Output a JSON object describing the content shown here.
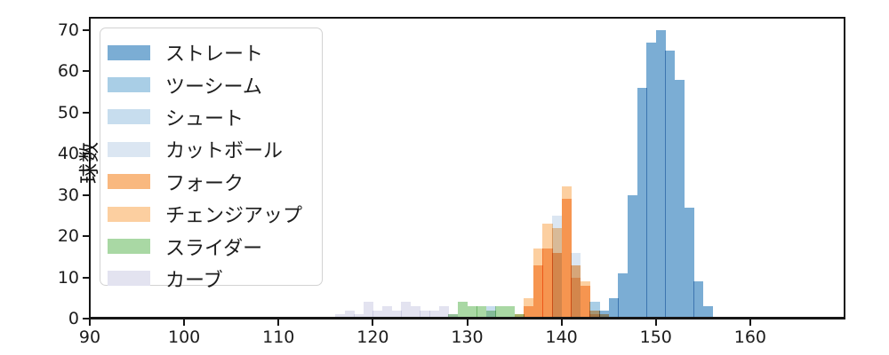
{
  "figure": {
    "background": "#ffffff",
    "spine_color": "#161616"
  },
  "y_axis": {
    "label": "球数",
    "ticks": [
      0,
      10,
      20,
      30,
      40,
      50,
      60,
      70
    ],
    "range": [
      0,
      73
    ]
  },
  "x_axis": {
    "ticks": [
      90,
      100,
      110,
      120,
      130,
      140,
      150,
      160
    ],
    "range": [
      90,
      170
    ]
  },
  "legend": {
    "position": "upper left",
    "entries": [
      {
        "label": "ストレート",
        "color": "#7badd4"
      },
      {
        "label": "ツーシーム",
        "color": "#a9cee6"
      },
      {
        "label": "シュート",
        "color": "#c7ddee"
      },
      {
        "label": "カットボール",
        "color": "#dbe6f2"
      },
      {
        "label": "フォーク",
        "color": "#f9b87f"
      },
      {
        "label": "チェンジアップ",
        "color": "#fccfa0"
      },
      {
        "label": "スライダー",
        "color": "#a9d8a4"
      },
      {
        "label": "カーブ",
        "color": "#e3e3f0"
      }
    ]
  },
  "chart_data": {
    "type": "histogram",
    "title": "",
    "xlabel": "",
    "ylabel": "球数",
    "grid": false,
    "bin_width": 1,
    "xlim": [
      90,
      170
    ],
    "ylim": [
      0,
      73
    ],
    "legend_position": "upper left",
    "series": [
      {
        "name": "カーブ",
        "color": "#e3e3f0",
        "bins": [
          [
            116,
            1
          ],
          [
            117,
            2
          ],
          [
            118,
            1
          ],
          [
            119,
            4
          ],
          [
            120,
            2
          ],
          [
            121,
            3
          ],
          [
            122,
            2
          ],
          [
            123,
            4
          ],
          [
            124,
            3
          ],
          [
            125,
            2
          ],
          [
            126,
            2
          ],
          [
            127,
            3
          ],
          [
            128,
            1
          ]
        ]
      },
      {
        "name": "スライダー",
        "color": "#a9d8a4",
        "bins": [
          [
            128,
            1
          ],
          [
            129,
            4
          ],
          [
            130,
            3
          ],
          [
            131,
            3
          ],
          [
            132,
            2
          ],
          [
            133,
            3
          ],
          [
            134,
            3
          ],
          [
            135,
            1
          ]
        ]
      },
      {
        "name": "カットボール",
        "color": "#dbe6f2",
        "bins": [
          [
            139,
            25
          ],
          [
            141,
            16
          ]
        ]
      },
      {
        "name": "シュート",
        "color": "#c7ddee",
        "bins": [
          [
            132,
            3
          ],
          [
            144,
            2
          ]
        ]
      },
      {
        "name": "チェンジアップ",
        "color": "#fccfa0",
        "bins": [
          [
            135,
            1
          ],
          [
            136,
            5
          ],
          [
            137,
            17
          ],
          [
            138,
            23
          ],
          [
            139,
            22
          ],
          [
            140,
            32
          ],
          [
            141,
            10
          ],
          [
            142,
            9
          ],
          [
            143,
            1
          ]
        ]
      },
      {
        "name": "フォーク",
        "color": "#f9b87f",
        "bins": [
          [
            136,
            3
          ],
          [
            137,
            13
          ],
          [
            138,
            17
          ],
          [
            139,
            16
          ],
          [
            140,
            29
          ],
          [
            141,
            13
          ],
          [
            142,
            8
          ],
          [
            143,
            2
          ],
          [
            144,
            1
          ]
        ]
      },
      {
        "name": "ツーシーム",
        "color": "#a9cee6",
        "bins": [
          [
            143,
            4
          ],
          [
            144,
            2
          ]
        ]
      },
      {
        "name": "ストレート",
        "color": "#7badd4",
        "bins": [
          [
            145,
            5
          ],
          [
            146,
            11
          ],
          [
            147,
            30
          ],
          [
            148,
            56
          ],
          [
            149,
            67
          ],
          [
            150,
            70
          ],
          [
            151,
            65
          ],
          [
            152,
            58
          ],
          [
            153,
            27
          ],
          [
            154,
            9
          ],
          [
            155,
            3
          ]
        ]
      }
    ]
  }
}
